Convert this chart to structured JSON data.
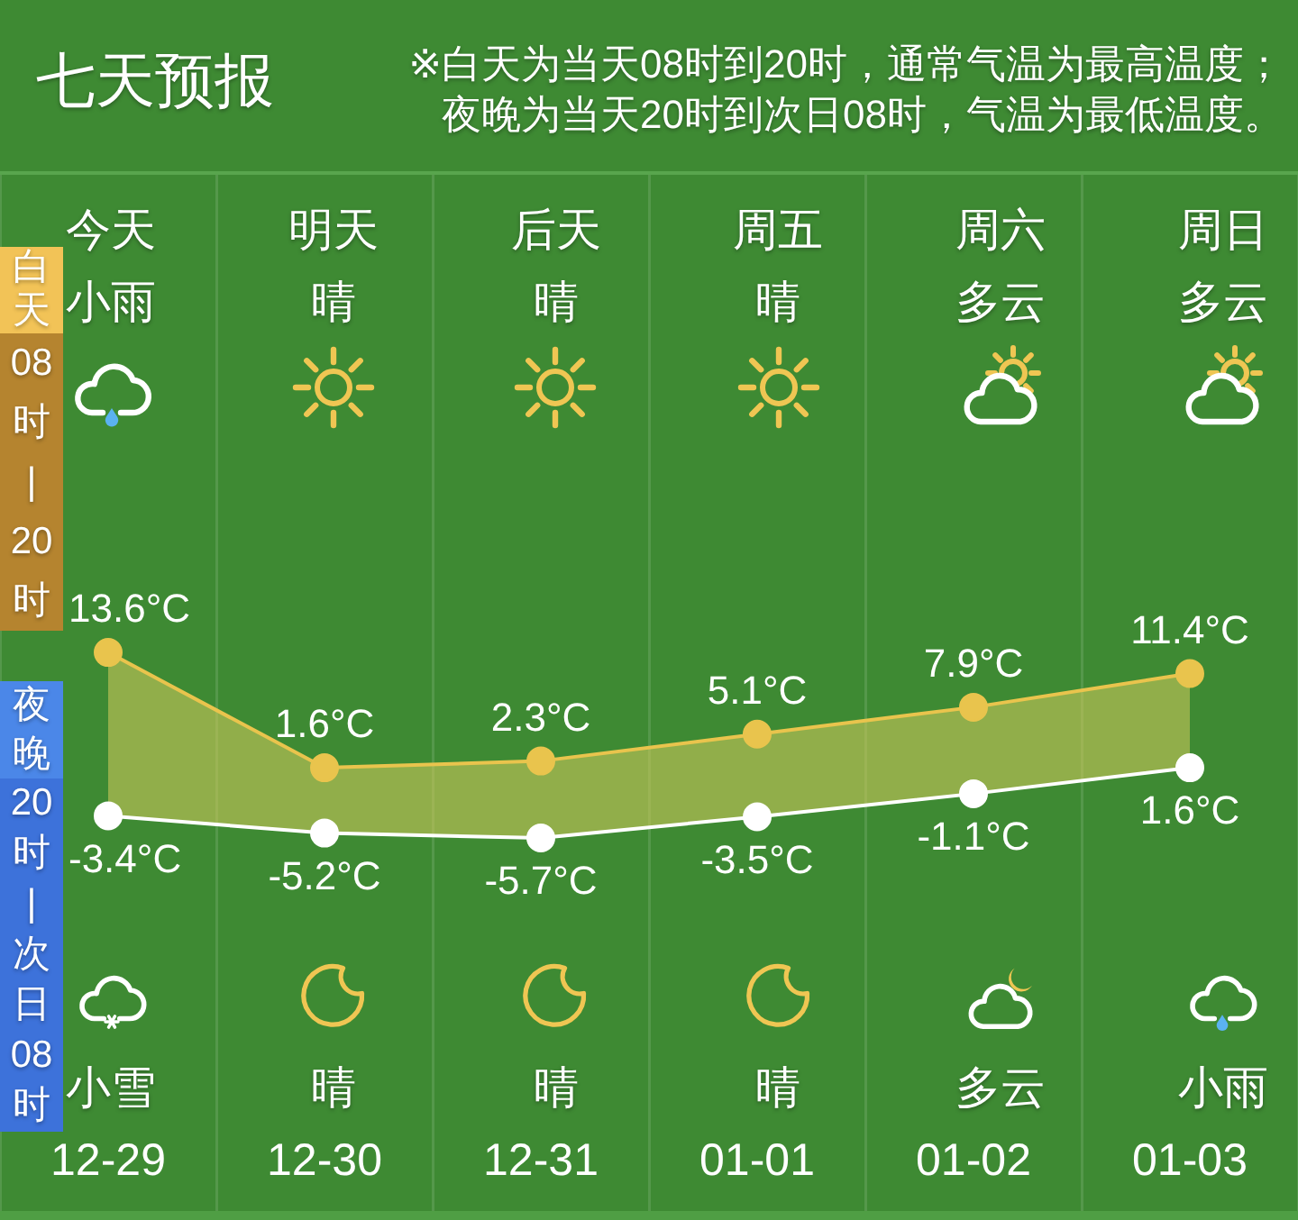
{
  "chart_data": {
    "type": "line",
    "title": "七天预报",
    "subtitle": "※白天为当天08时到20时，通常气温为最高温度；夜晚为当天20时到次日08时，气温为最低温度。",
    "categories": [
      "12-29",
      "12-30",
      "12-31",
      "01-01",
      "01-02",
      "01-03"
    ],
    "series": [
      {
        "name": "白天",
        "color": "#e9c44d",
        "values": [
          13.6,
          1.6,
          2.3,
          5.1,
          7.9,
          11.4
        ],
        "value_labels": [
          "13.6°C",
          "1.6°C",
          "2.3°C",
          "5.1°C",
          "7.9°C",
          "11.4°C"
        ]
      },
      {
        "name": "夜晚",
        "color": "#ffffff",
        "values": [
          -3.4,
          -5.2,
          -5.7,
          -3.5,
          -1.1,
          1.6
        ],
        "value_labels": [
          "-3.4°C",
          "-5.2°C",
          "-5.7°C",
          "-3.5°C",
          "-1.1°C",
          "1.6°C"
        ]
      }
    ],
    "annotations": [
      "今天",
      "明天",
      "后天",
      "周五",
      "周六",
      "周日",
      "小雨",
      "晴",
      "晴",
      "晴",
      "多云",
      "多云",
      "小雪",
      "晴",
      "晴",
      "晴",
      "多云",
      "小雨",
      "08时|20时",
      "20时|次日08时"
    ],
    "legend": "left",
    "grid": "x",
    "tick_labels": "x",
    "marker": "circle",
    "line_style": "solid"
  }
}
